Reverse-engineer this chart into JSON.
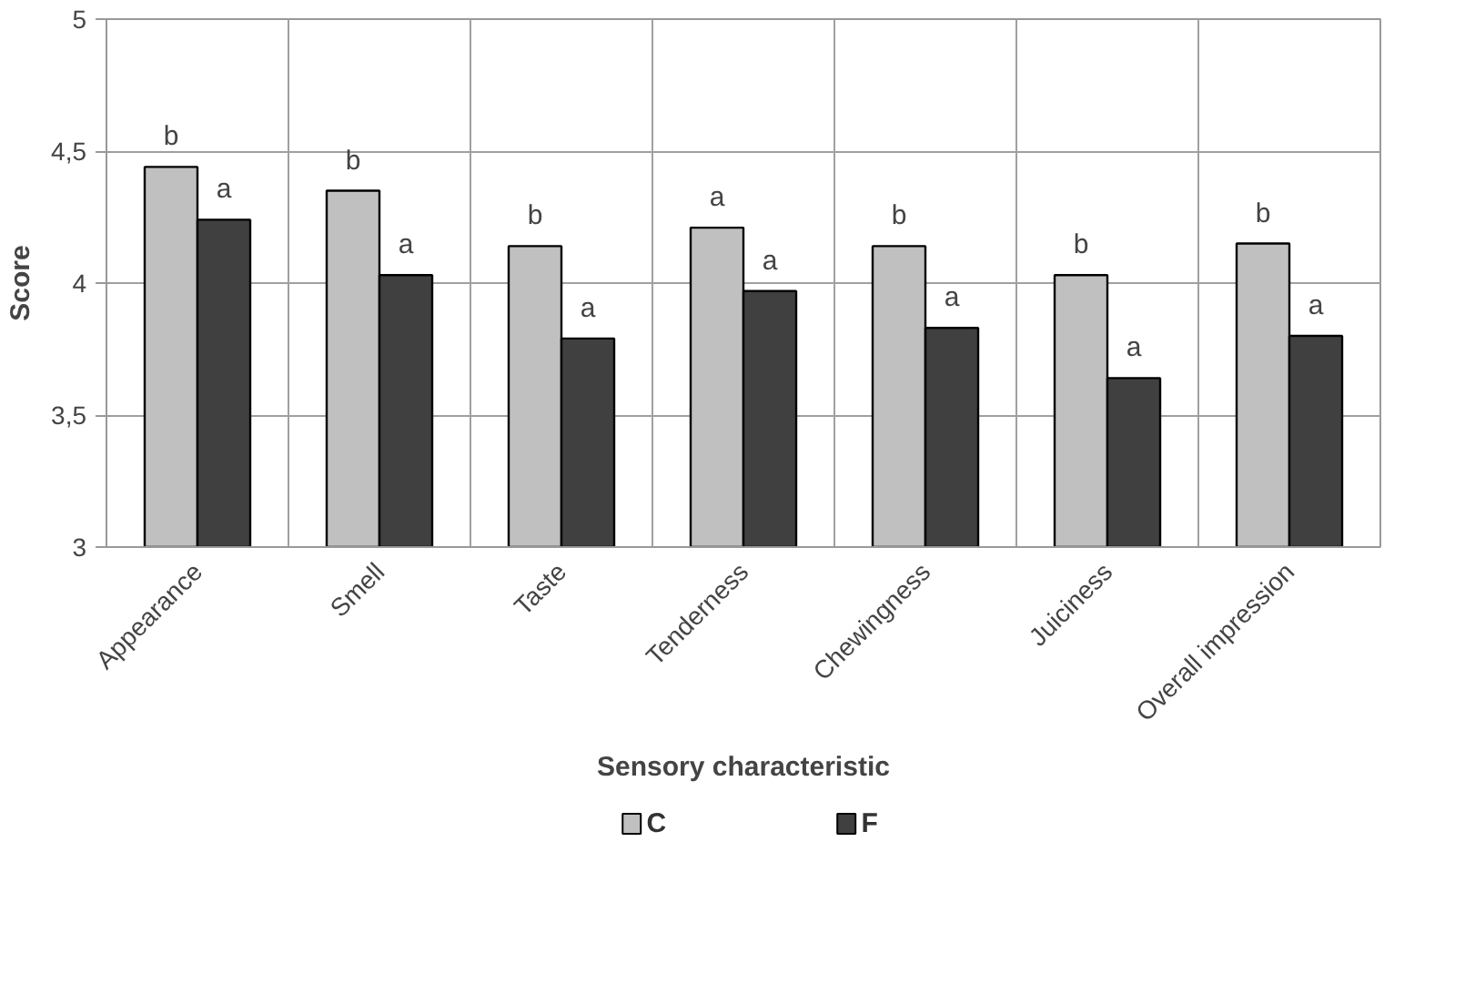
{
  "chart_data": {
    "type": "bar",
    "xlabel": "Sensory characteristic",
    "ylabel": "Score",
    "categories": [
      "Appearance",
      "Smell",
      "Taste",
      "Tenderness",
      "Chewingness",
      "Juiciness",
      "Overall impression"
    ],
    "series": [
      {
        "name": "C",
        "color": "#c0c0c0",
        "values": [
          4.44,
          4.35,
          4.14,
          4.21,
          4.14,
          4.03,
          4.15
        ],
        "value_labels": [
          "b",
          "b",
          "b",
          "a",
          "b",
          "b",
          "b"
        ]
      },
      {
        "name": "F",
        "color": "#404040",
        "values": [
          4.24,
          4.03,
          3.79,
          3.97,
          3.83,
          3.64,
          3.8
        ],
        "value_labels": [
          "a",
          "a",
          "a",
          "a",
          "a",
          "a",
          "a"
        ]
      }
    ],
    "ylim": [
      3,
      5
    ],
    "yticks": [
      3,
      {
        "value": 3.5,
        "label": "3,5"
      },
      4,
      {
        "value": 4.5,
        "label": "4,5"
      },
      5
    ],
    "grid": true,
    "legend": "bottom"
  }
}
